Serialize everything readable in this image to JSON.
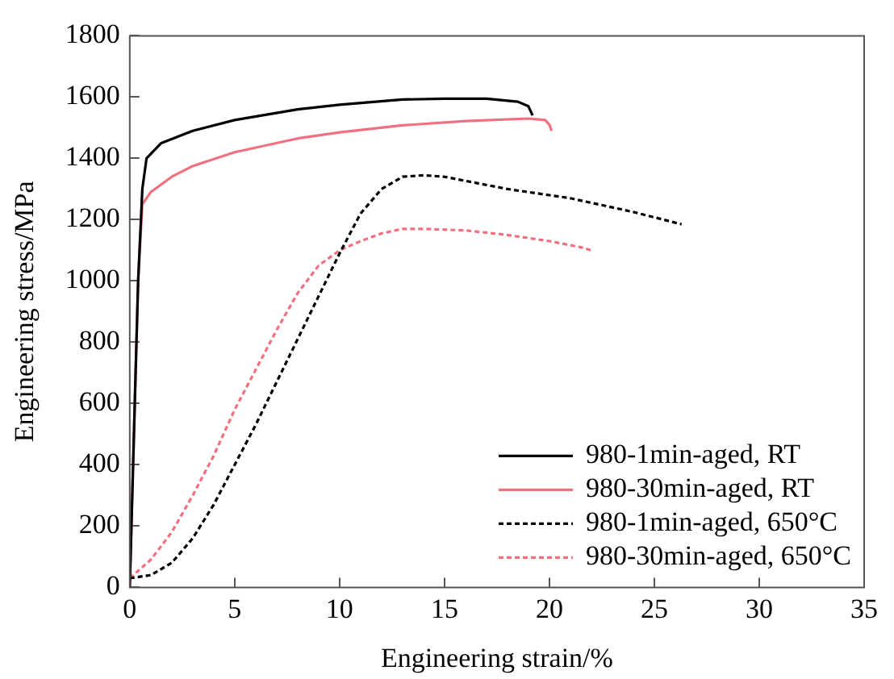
{
  "chart_data": {
    "type": "line",
    "xlabel": "Engineering strain/%",
    "ylabel": "Engineering stress/MPa",
    "xlim": [
      0,
      35
    ],
    "xticks": [
      0,
      5,
      10,
      15,
      20,
      25,
      30,
      35
    ],
    "ylim": [
      0,
      1800
    ],
    "yticks": [
      0,
      200,
      400,
      600,
      800,
      1000,
      1200,
      1400,
      1600,
      1800
    ],
    "grid": false,
    "legend": "bottom right",
    "marker": "none",
    "series": [
      {
        "name": "980-1min-aged, RT",
        "color": "#000000",
        "line_style": "solid",
        "x": [
          0,
          0.4,
          0.6,
          0.8,
          1.5,
          3,
          5,
          8,
          10,
          13,
          15,
          17,
          18.5,
          19,
          19.2
        ],
        "values": [
          0,
          1000,
          1300,
          1400,
          1450,
          1490,
          1525,
          1560,
          1575,
          1592,
          1595,
          1595,
          1585,
          1570,
          1540
        ]
      },
      {
        "name": "980-30min-aged, RT",
        "color": "#f07080",
        "line_style": "solid",
        "x": [
          0,
          0.4,
          0.6,
          1,
          2,
          3,
          5,
          8,
          10,
          13,
          16,
          19,
          19.8,
          20,
          20.1
        ],
        "values": [
          0,
          1000,
          1250,
          1290,
          1340,
          1375,
          1420,
          1465,
          1485,
          1508,
          1522,
          1530,
          1525,
          1510,
          1490
        ]
      },
      {
        "name": "980-1min-aged, 650°C",
        "color": "#000000",
        "line_style": "dashed",
        "x": [
          0,
          1,
          2,
          3,
          4,
          5,
          6,
          7,
          8,
          9,
          10,
          11,
          12,
          13,
          14,
          15,
          18,
          21,
          24,
          26.3
        ],
        "values": [
          30,
          40,
          80,
          160,
          270,
          400,
          530,
          670,
          810,
          950,
          1090,
          1220,
          1300,
          1340,
          1345,
          1340,
          1300,
          1270,
          1225,
          1185
        ]
      },
      {
        "name": "980-30min-aged, 650°C",
        "color": "#f07080",
        "line_style": "dashed",
        "x": [
          0,
          1,
          2,
          3,
          4,
          5,
          6,
          7,
          8,
          9,
          10,
          11,
          12,
          13,
          14,
          16,
          18,
          20,
          21.5,
          22
        ],
        "values": [
          30,
          90,
          180,
          300,
          430,
          580,
          710,
          840,
          960,
          1050,
          1100,
          1130,
          1155,
          1170,
          1170,
          1165,
          1150,
          1130,
          1110,
          1100
        ]
      }
    ]
  }
}
